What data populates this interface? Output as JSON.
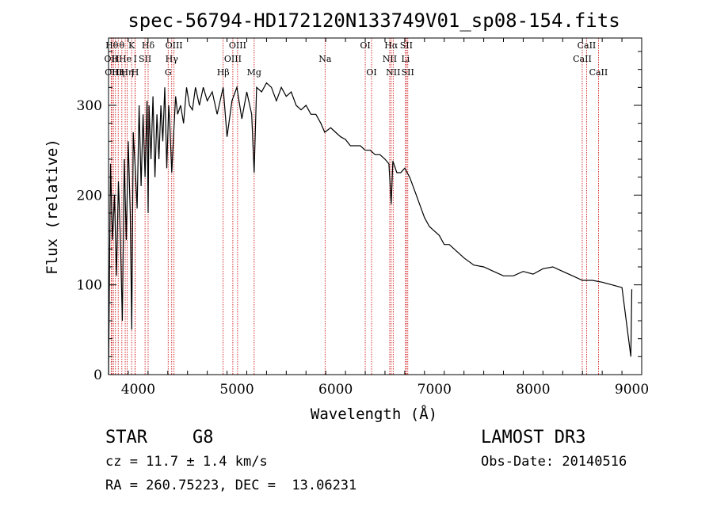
{
  "chart_data": {
    "type": "line",
    "title": "spec-56794-HD172120N133749V01_sp08-154.fits",
    "xlabel": "Wavelength (Å)",
    "ylabel": "Flux (relative)",
    "xlim": [
      3700,
      9100
    ],
    "ylim": [
      0,
      375
    ],
    "xticks": [
      4000,
      5000,
      6000,
      7000,
      8000,
      9000
    ],
    "yticks": [
      0,
      100,
      200,
      300
    ],
    "grid": false,
    "series": [
      {
        "x": [
          3700,
          3720,
          3740,
          3760,
          3780,
          3800,
          3820,
          3840,
          3860,
          3880,
          3900,
          3920,
          3935,
          3950,
          3970,
          3990,
          4010,
          4030,
          4050,
          4070,
          4090,
          4101,
          4110,
          4130,
          4150,
          4170,
          4190,
          4210,
          4230,
          4250,
          4270,
          4290,
          4310,
          4320,
          4340,
          4360,
          4380,
          4400,
          4430,
          4460,
          4490,
          4520,
          4550,
          4580,
          4620,
          4660,
          4700,
          4750,
          4800,
          4861,
          4900,
          4950,
          5000,
          5050,
          5100,
          5150,
          5175,
          5200,
          5250,
          5300,
          5350,
          5400,
          5450,
          5500,
          5550,
          5600,
          5650,
          5700,
          5750,
          5800,
          5850,
          5890,
          5950,
          6000,
          6050,
          6100,
          6150,
          6200,
          6250,
          6300,
          6350,
          6400,
          6450,
          6500,
          6540,
          6563,
          6580,
          6620,
          6660,
          6700,
          6750,
          6800,
          6850,
          6900,
          6950,
          7000,
          7050,
          7100,
          7150,
          7200,
          7300,
          7400,
          7500,
          7600,
          7700,
          7800,
          7900,
          8000,
          8100,
          8200,
          8300,
          8400,
          8500,
          8600,
          8700,
          8800,
          8900,
          8990,
          9000
        ],
        "y": [
          0,
          235,
          150,
          200,
          110,
          215,
          150,
          60,
          240,
          150,
          260,
          180,
          50,
          270,
          230,
          185,
          300,
          210,
          290,
          220,
          305,
          180,
          300,
          240,
          310,
          220,
          290,
          240,
          300,
          260,
          320,
          230,
          300,
          280,
          225,
          270,
          310,
          290,
          300,
          280,
          320,
          300,
          295,
          320,
          300,
          320,
          305,
          315,
          290,
          320,
          265,
          305,
          320,
          285,
          315,
          290,
          225,
          320,
          315,
          325,
          320,
          305,
          320,
          310,
          315,
          300,
          295,
          300,
          290,
          290,
          280,
          270,
          275,
          270,
          265,
          262,
          255,
          255,
          255,
          250,
          250,
          245,
          245,
          240,
          235,
          190,
          238,
          225,
          225,
          230,
          220,
          205,
          190,
          175,
          165,
          160,
          155,
          145,
          145,
          140,
          130,
          122,
          120,
          115,
          110,
          110,
          115,
          112,
          118,
          120,
          115,
          110,
          105,
          105,
          103,
          100,
          97,
          20,
          95
        ]
      }
    ],
    "lines": [
      {
        "w": 3727,
        "label": "OII",
        "row": 1
      },
      {
        "w": 3734,
        "label": "Hθ",
        "row": 0
      },
      {
        "w": 3750,
        "label": "OIII",
        "row": 2
      },
      {
        "w": 3770,
        "label": "H",
        "row": 1
      },
      {
        "w": 3798,
        "label": "Hη",
        "row": 2
      },
      {
        "w": 3835,
        "label": "θ",
        "row": 0
      },
      {
        "w": 3869,
        "label": "He",
        "row": 1
      },
      {
        "w": 3889,
        "label": "Hη",
        "row": 2
      },
      {
        "w": 3934,
        "label": "K",
        "row": 0
      },
      {
        "w": 3969,
        "label": "H",
        "row": 2
      },
      {
        "w": 3970,
        "label": "I",
        "row": 1
      },
      {
        "w": 4070,
        "label": "SII",
        "row": 1
      },
      {
        "w": 4101,
        "label": "Hδ",
        "row": 0
      },
      {
        "w": 4304,
        "label": "G",
        "row": 2
      },
      {
        "w": 4340,
        "label": "Hγ",
        "row": 1
      },
      {
        "w": 4363,
        "label": "OIII",
        "row": 0
      },
      {
        "w": 4861,
        "label": "Hβ",
        "row": 2
      },
      {
        "w": 4959,
        "label": "OIII",
        "row": 1
      },
      {
        "w": 5007,
        "label": "OIII",
        "row": 0
      },
      {
        "w": 5175,
        "label": "Mg",
        "row": 2
      },
      {
        "w": 5893,
        "label": "Na",
        "row": 1
      },
      {
        "w": 6300,
        "label": "OI",
        "row": 0
      },
      {
        "w": 6364,
        "label": "OI",
        "row": 2
      },
      {
        "w": 6548,
        "label": "NII",
        "row": 1
      },
      {
        "w": 6563,
        "label": "Hα",
        "row": 0
      },
      {
        "w": 6583,
        "label": "NII",
        "row": 2
      },
      {
        "w": 6708,
        "label": "Li",
        "row": 1
      },
      {
        "w": 6716,
        "label": "SII",
        "row": 0
      },
      {
        "w": 6731,
        "label": "SII",
        "row": 2
      },
      {
        "w": 8498,
        "label": "CaII",
        "row": 1
      },
      {
        "w": 8542,
        "label": "CaII",
        "row": 0
      },
      {
        "w": 8662,
        "label": "CaII",
        "row": 2
      }
    ]
  },
  "info": {
    "class_label": "STAR",
    "subclass": "G8",
    "survey": "LAMOST DR3",
    "cz": "cz = 11.7 ± 1.4 km/s",
    "obs_date": "Obs-Date: 20140516",
    "coords": "RA = 260.75223, DEC =  13.06231"
  },
  "colors": {
    "spectrum": "#000000",
    "line_markers": "#cc0000",
    "axes": "#000000",
    "background": "#ffffff"
  }
}
